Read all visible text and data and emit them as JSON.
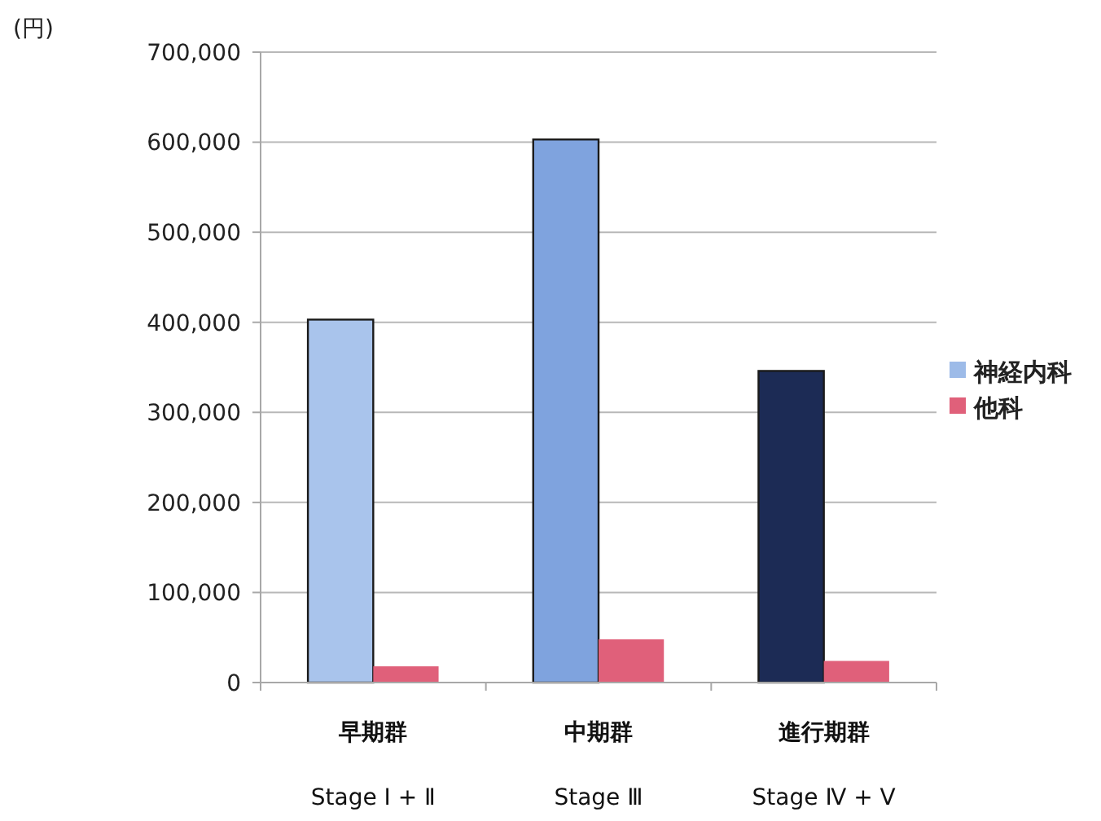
{
  "chart_data": {
    "type": "bar",
    "ylabel": "(円)",
    "categories": [
      "早期群\nStage Ⅰ + Ⅱ",
      "中期群\nStage Ⅲ",
      "進行期群\nStage Ⅳ + Ⅴ"
    ],
    "series": [
      {
        "name": "神経内科",
        "color": "#9dbbe8",
        "colors": [
          "#a9c4ec",
          "#7fa3de",
          "#1c2b55"
        ],
        "values": [
          403000,
          603000,
          346000
        ]
      },
      {
        "name": "他科",
        "color": "#e0607a",
        "values": [
          18000,
          48000,
          24000
        ]
      }
    ],
    "ylim": [
      0,
      700000
    ],
    "yticks": [
      {
        "value": 0,
        "label": "0"
      },
      {
        "value": 100000,
        "label": "100,000"
      },
      {
        "value": 200000,
        "label": "200,000"
      },
      {
        "value": 300000,
        "label": "300,000"
      },
      {
        "value": 400000,
        "label": "400,000"
      },
      {
        "value": 500000,
        "label": "500,000"
      },
      {
        "value": 600000,
        "label": "600,000"
      },
      {
        "value": 700000,
        "label": "700,000"
      }
    ],
    "grid": "y",
    "legend": "right"
  }
}
